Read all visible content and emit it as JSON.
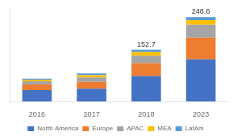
{
  "chart_data": {
    "type": "bar",
    "stacked": true,
    "categories": [
      "2016",
      "2017",
      "2018",
      "2023"
    ],
    "series": [
      {
        "name": "North America",
        "color": "#4472C4",
        "values": [
          33.5,
          38.0,
          75.0,
          124.0
        ]
      },
      {
        "name": "Europe",
        "color": "#ED7D31",
        "values": [
          16.5,
          20.0,
          38.0,
          64.0
        ]
      },
      {
        "name": "APAC",
        "color": "#A5A5A5",
        "values": [
          9.5,
          13.0,
          22.0,
          38.0
        ]
      },
      {
        "name": "MEA",
        "color": "#FFC000",
        "values": [
          4.5,
          6.5,
          10.5,
          13.6
        ]
      },
      {
        "name": "LatAm",
        "color": "#5B9BD5",
        "values": [
          3.5,
          5.0,
          7.2,
          9.0
        ]
      }
    ],
    "ylim": [
      0,
      275
    ],
    "grid": false,
    "legend": "bottom",
    "tick_labels": "x",
    "annotations": [
      {
        "category": "2018",
        "value": 152.7,
        "label": "152.7"
      },
      {
        "category": "2023",
        "value": 248.6,
        "label": "248.6"
      }
    ]
  }
}
